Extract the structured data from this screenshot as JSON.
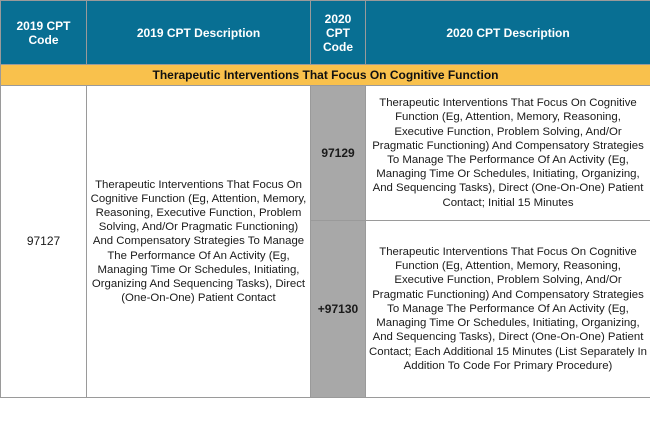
{
  "headers": {
    "col1": "2019 CPT Code",
    "col2": "2019 CPT Description",
    "col3": "2020 CPT Code",
    "col4": "2020 CPT Description"
  },
  "section": {
    "title": "Therapeutic Interventions That Focus On Cognitive Function"
  },
  "rows": {
    "code_2019": "97127",
    "desc_2019": "Therapeutic Interventions That Focus On Cognitive Function (Eg, Attention, Memory, Reasoning, Executive Function, Problem Solving, And/Or Pragmatic Functioning) And Compensatory Strategies To Manage The Performance Of An Activity (Eg, Managing Time Or Schedules, Initiating, Organizing And Sequencing Tasks), Direct (One-On-One) Patient Contact",
    "new": [
      {
        "code": "97129",
        "desc": "Therapeutic Interventions That Focus On Cognitive Function (Eg, Attention, Memory, Reasoning, Executive Function, Problem Solving, And/Or Pragmatic Functioning) And Compensatory Strategies To Manage The Performance Of An Activity (Eg, Managing Time Or Schedules, Initiating, Organizing, And Sequencing Tasks), Direct (One-On-One) Patient Contact; Initial 15 Minutes"
      },
      {
        "code": "+97130",
        "desc": "Therapeutic Interventions That Focus On Cognitive Function (Eg, Attention, Memory, Reasoning, Executive Function, Problem Solving, And/Or Pragmatic Functioning) And Compensatory Strategies To Manage The Performance Of An Activity (Eg, Managing Time Or Schedules, Initiating, Organizing, And Sequencing Tasks), Direct (One-On-One) Patient Contact; Each Additional 15 Minutes (List Separately In Addition To Code For Primary Procedure)"
      }
    ]
  },
  "colors": {
    "header_bg": "#086f93",
    "section_bg": "#f9c14c",
    "code_cell_bg": "#a8a8a8"
  }
}
